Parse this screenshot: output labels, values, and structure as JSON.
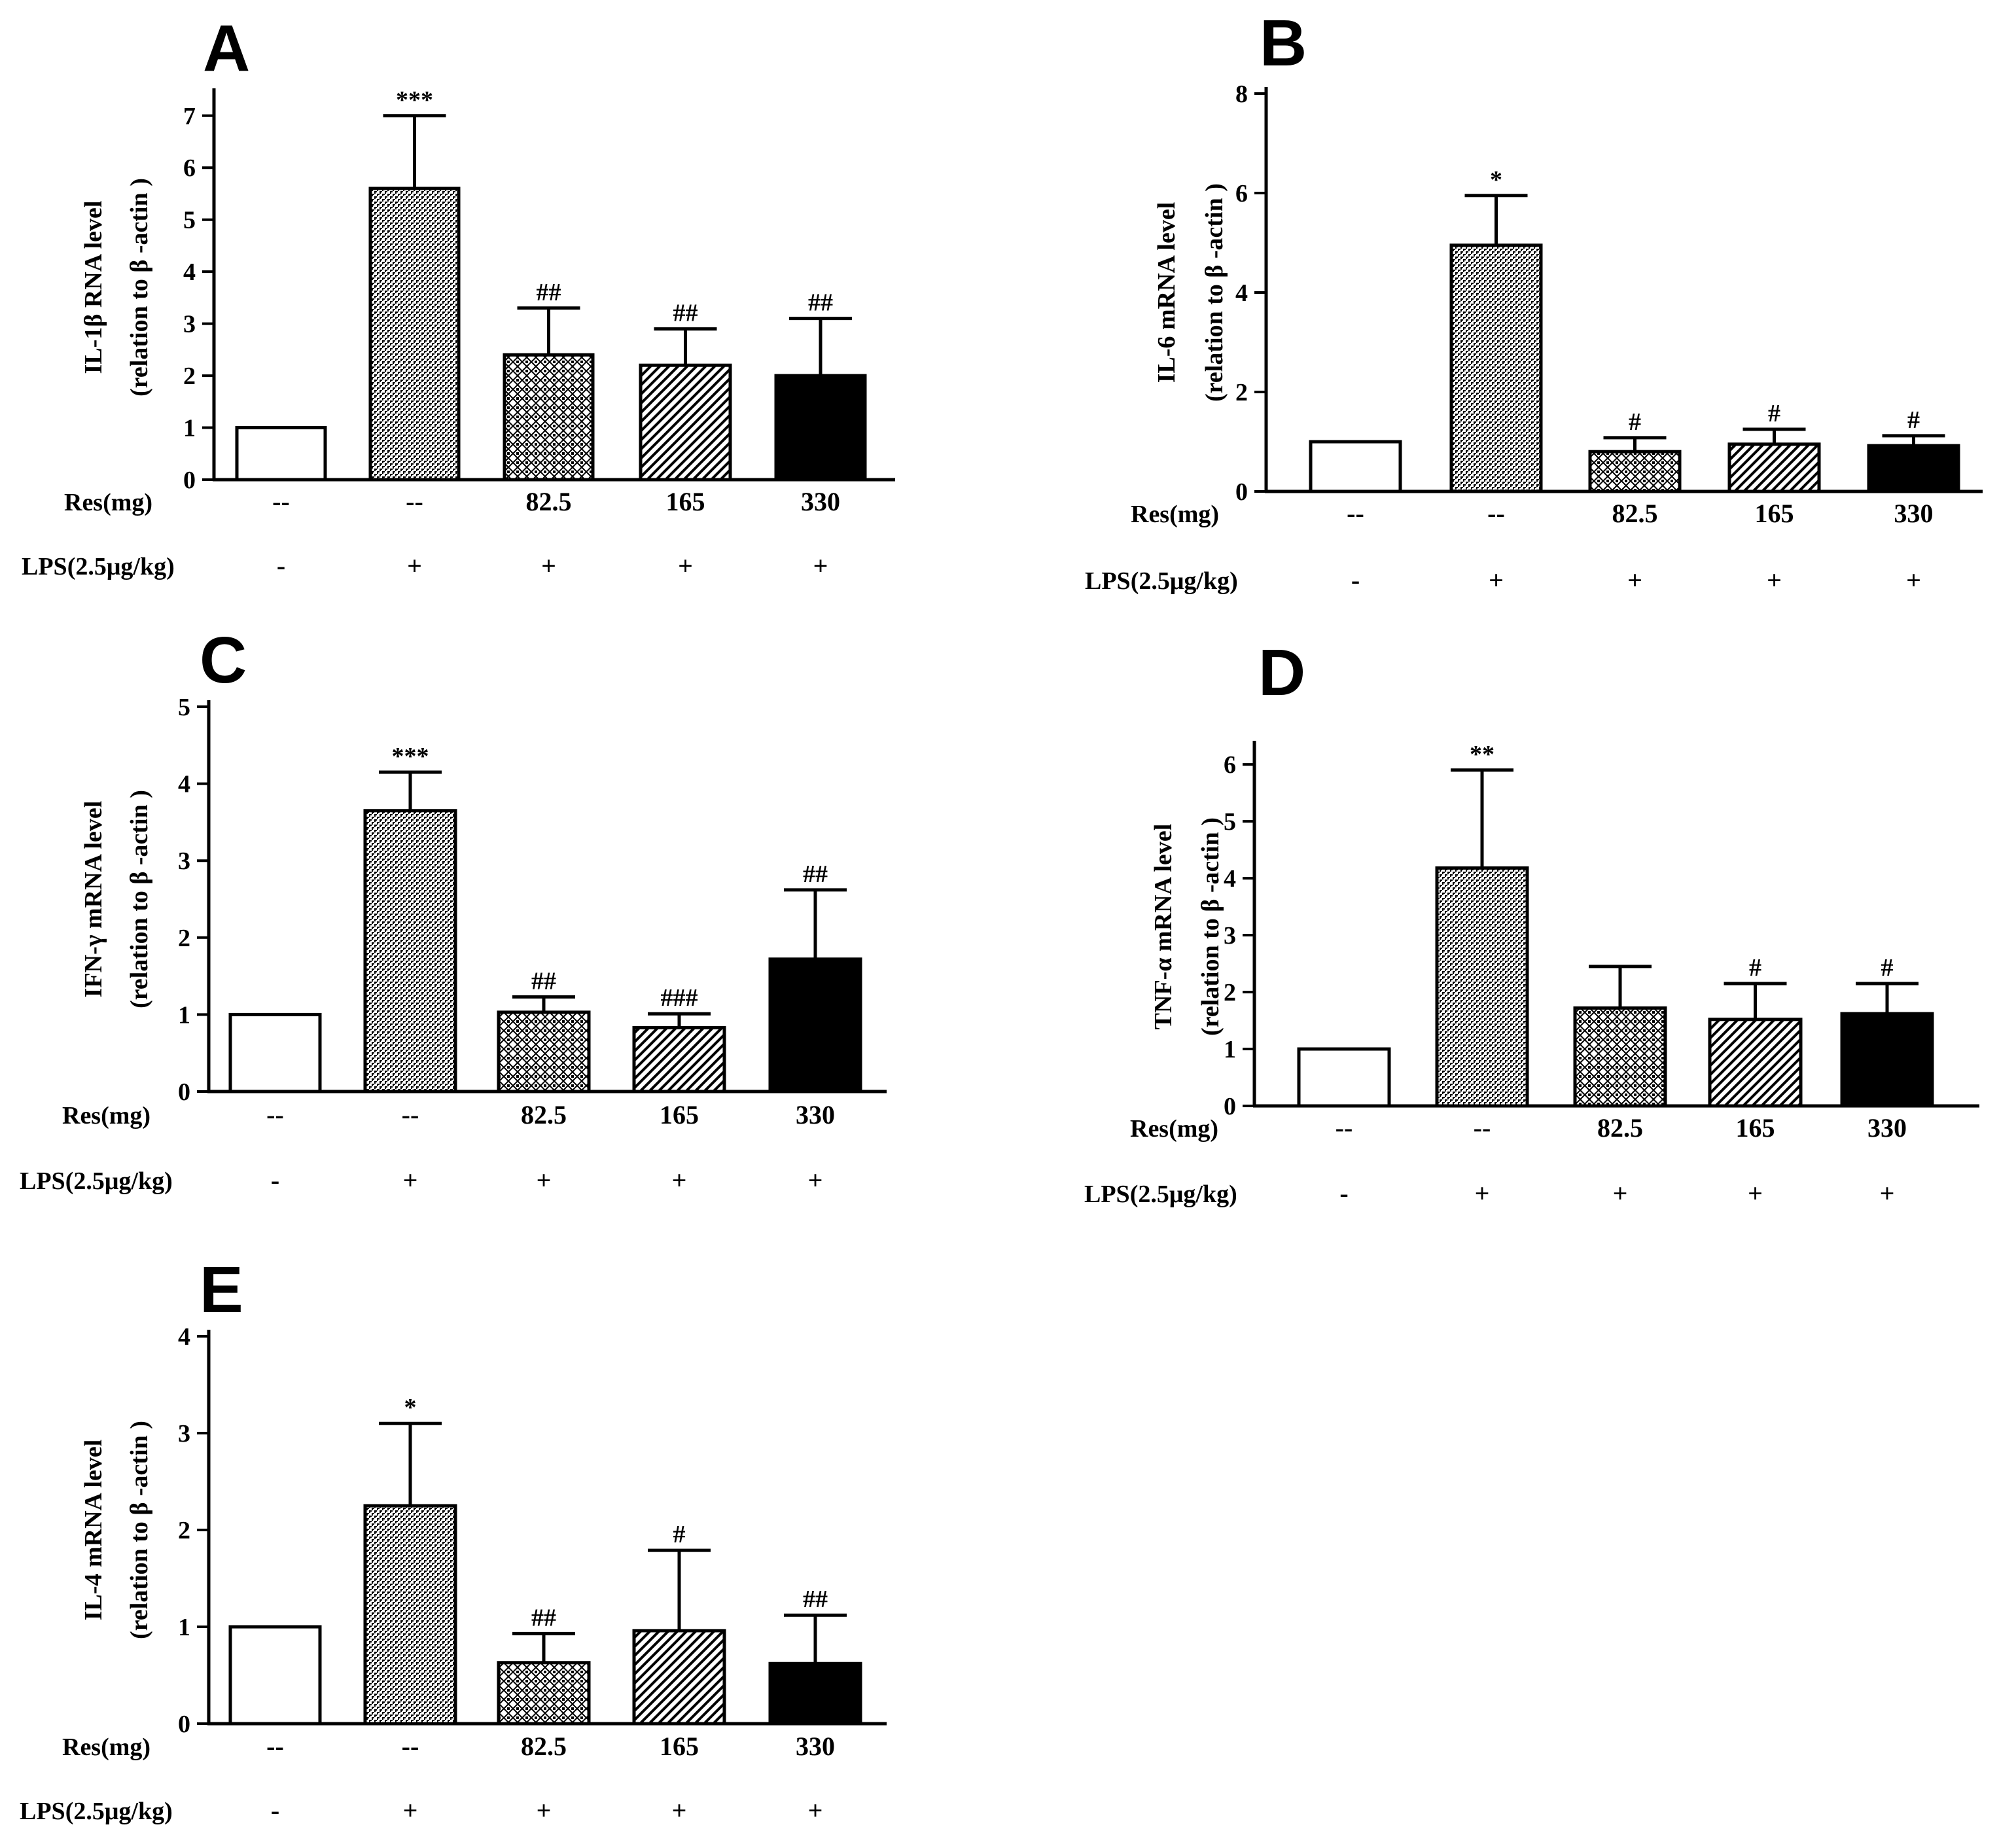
{
  "row_labels": {
    "res": "Res(mg)",
    "lps": "LPS(2.5μg/kg)"
  },
  "res_values": [
    "--",
    "--",
    "82.5",
    "165",
    "330"
  ],
  "lps_values": [
    "-",
    "+",
    "+",
    "+",
    "+"
  ],
  "chart_data": [
    {
      "type": "bar",
      "panel": "A",
      "ylabel_line1": "IL-1β  RNA level",
      "ylabel_line2": "(relation to β -actin )",
      "categories": [
        "--",
        "--",
        "82.5",
        "165",
        "330"
      ],
      "values": [
        1.0,
        5.6,
        2.4,
        2.2,
        2.0
      ],
      "errors": [
        0,
        1.4,
        0.9,
        0.7,
        1.1
      ],
      "significance": [
        "",
        "***",
        "##",
        "##",
        "##"
      ],
      "ylim": [
        0,
        7.4
      ],
      "yticks": [
        0,
        1,
        2,
        3,
        4,
        5,
        6,
        7
      ]
    },
    {
      "type": "bar",
      "panel": "B",
      "ylabel_line1": "IL-6  mRNA level",
      "ylabel_line2": "(relation to β -actin )",
      "categories": [
        "--",
        "--",
        "82.5",
        "165",
        "330"
      ],
      "values": [
        1.0,
        4.95,
        0.8,
        0.95,
        0.92
      ],
      "errors": [
        0,
        1.0,
        0.28,
        0.3,
        0.2
      ],
      "significance": [
        "",
        "*",
        "#",
        "#",
        "#"
      ],
      "ylim": [
        0,
        8
      ],
      "yticks": [
        0,
        2,
        4,
        6,
        8
      ]
    },
    {
      "type": "bar",
      "panel": "C",
      "ylabel_line1": "IFN-γ mRNA level",
      "ylabel_line2": "(relation to β -actin )",
      "categories": [
        "--",
        "--",
        "82.5",
        "165",
        "330"
      ],
      "values": [
        1.0,
        3.65,
        1.03,
        0.83,
        1.72
      ],
      "errors": [
        0,
        0.5,
        0.2,
        0.18,
        0.9
      ],
      "significance": [
        "",
        "***",
        "##",
        "###",
        "##"
      ],
      "ylim": [
        0,
        5
      ],
      "yticks": [
        0,
        1,
        2,
        3,
        4,
        5
      ]
    },
    {
      "type": "bar",
      "panel": "D",
      "ylabel_line1": "TNF-α  mRNA level",
      "ylabel_line2": "(relation to β -actin )",
      "categories": [
        "--",
        "--",
        "82.5",
        "165",
        "330"
      ],
      "values": [
        1.0,
        4.18,
        1.72,
        1.52,
        1.62
      ],
      "errors": [
        0,
        1.72,
        0.73,
        0.63,
        0.53
      ],
      "significance": [
        "",
        "**",
        "",
        "#",
        "#"
      ],
      "ylim": [
        0,
        6.3
      ],
      "yticks": [
        0,
        1,
        2,
        3,
        4,
        5,
        6
      ]
    },
    {
      "type": "bar",
      "panel": "E",
      "ylabel_line1": "IL-4 mRNA level",
      "ylabel_line2": "(relation to β -actin )",
      "categories": [
        "--",
        "--",
        "82.5",
        "165",
        "330"
      ],
      "values": [
        1.0,
        2.25,
        0.63,
        0.96,
        0.62
      ],
      "errors": [
        0,
        0.85,
        0.3,
        0.83,
        0.5
      ],
      "significance": [
        "",
        "*",
        "##",
        "#",
        "##"
      ],
      "ylim": [
        0,
        4
      ],
      "yticks": [
        0,
        1,
        2,
        3,
        4
      ]
    }
  ]
}
